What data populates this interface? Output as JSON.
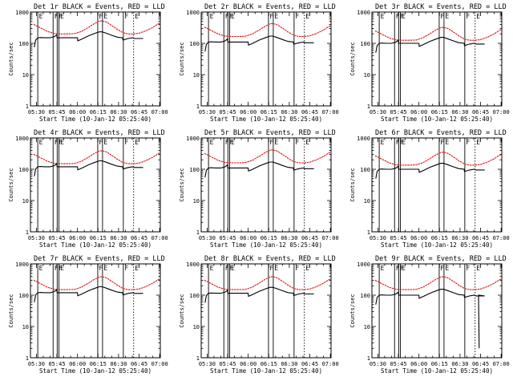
{
  "colors": {
    "events": "#000000",
    "lld": "#e01010",
    "axes": "#000000",
    "background": "#ffffff"
  },
  "chart_data": {
    "type": "line",
    "layout": "3x3 grid",
    "series_names": [
      "Events",
      "LLD"
    ],
    "series_colors": [
      "#000000",
      "#e01010"
    ],
    "xlabel": "Start Time (10-Jan-12 05:25:40)",
    "ylabel": "Counts/sec",
    "ytick_labels": [
      "1",
      "10",
      "100",
      "1000"
    ],
    "ylim": [
      1,
      1000
    ],
    "yscale": "log",
    "xtick_labels": [
      "05:30",
      "05:45",
      "06:00",
      "06:15",
      "06:30",
      "06:45",
      "07:00"
    ],
    "xtick_minutes": [
      30,
      45,
      60,
      75,
      90,
      105,
      120
    ],
    "xlim_minutes": [
      25.67,
      120.5
    ],
    "x_unit": "minutes after 05:00 UT",
    "flag_lines": [
      {
        "label": "E",
        "x": 31.0,
        "style": "solid"
      },
      {
        "label": "F",
        "x": 42.2,
        "style": "solid"
      },
      {
        "label": "F",
        "x": 45.2,
        "style": "solid"
      },
      {
        "label": "E",
        "x": 46.5,
        "style": "solid"
      },
      {
        "label": "F",
        "x": 74.8,
        "style": "solid"
      },
      {
        "label": "E",
        "x": 78.3,
        "style": "solid"
      },
      {
        "label": "F",
        "x": 93.5,
        "style": "solid"
      },
      {
        "label": "E",
        "x": 101.0,
        "style": "dotted"
      }
    ],
    "lld_template": {
      "x": [
        28,
        33,
        38,
        43,
        48,
        53,
        58,
        63,
        68,
        73,
        76,
        78,
        81,
        85,
        89,
        93,
        97,
        101,
        105,
        110,
        115,
        120
      ],
      "rel": [
        2.0,
        1.55,
        1.2,
        1.03,
        1.0,
        1.0,
        1.02,
        1.2,
        1.6,
        2.2,
        2.55,
        2.6,
        2.4,
        1.85,
        1.4,
        1.1,
        1.0,
        1.0,
        1.05,
        1.25,
        1.6,
        2.2
      ]
    },
    "events_template": {
      "x": [
        28.5,
        29.5,
        31,
        33,
        36,
        40,
        43,
        45,
        45.1,
        50,
        55,
        60,
        60.2,
        63,
        68,
        73,
        76,
        78,
        81,
        85,
        89,
        93,
        93.3,
        97,
        100.5,
        101.5,
        105,
        108
      ],
      "rel": [
        0.5,
        0.85,
        1.0,
        1.02,
        1.0,
        1.0,
        1.08,
        1.25,
        1.0,
        1.0,
        1.0,
        1.0,
        0.8,
        0.9,
        1.15,
        1.4,
        1.55,
        1.55,
        1.4,
        1.2,
        1.05,
        1.0,
        0.85,
        0.95,
        1.0,
        0.95,
        0.95,
        0.95
      ]
    },
    "panels": [
      {
        "title": "Det 1r BLACK = Events, RED = LLD",
        "events_base": 150,
        "lld_base": 200
      },
      {
        "title": "Det 2r BLACK = Events, RED = LLD",
        "events_base": 110,
        "lld_base": 165
      },
      {
        "title": "Det 3r BLACK = Events, RED = LLD",
        "events_base": 100,
        "lld_base": 125
      },
      {
        "title": "Det 4r BLACK = Events, RED = LLD",
        "events_base": 120,
        "lld_base": 150
      },
      {
        "title": "Det 5r BLACK = Events, RED = LLD",
        "events_base": 110,
        "lld_base": 160
      },
      {
        "title": "Det 6r BLACK = Events, RED = LLD",
        "events_base": 100,
        "lld_base": 135
      },
      {
        "title": "Det 7r BLACK = Events, RED = LLD",
        "events_base": 120,
        "lld_base": 150
      },
      {
        "title": "Det 8r BLACK = Events, RED = LLD",
        "events_base": 115,
        "lld_base": 150
      },
      {
        "title": "Det 9r BLACK = Events, RED = LLD",
        "events_base": 100,
        "lld_base": 150,
        "events_drop": [
          [
            103.5,
            100
          ],
          [
            104.0,
            2
          ]
        ]
      }
    ]
  }
}
